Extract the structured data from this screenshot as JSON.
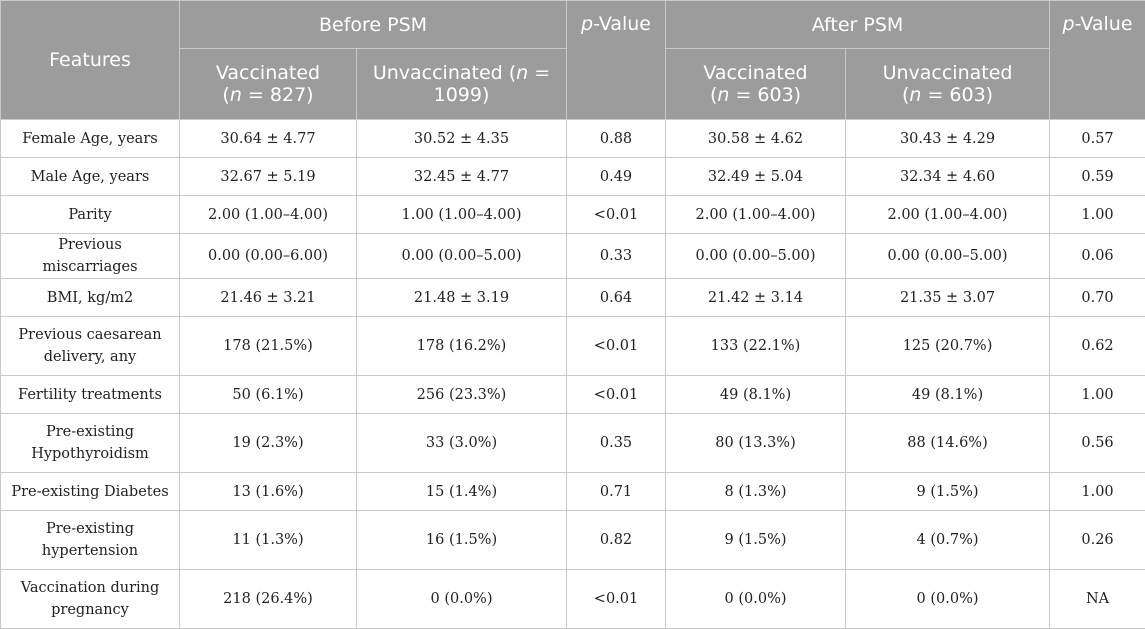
{
  "header": {
    "features": "Features",
    "before_group": "Before PSM",
    "after_group": "After PSM",
    "pvalue_p": "p",
    "pvalue_rest": "-Value",
    "before_vacc": {
      "label": "Vaccinated",
      "open": "(",
      "n": "n",
      "rest": " = 827)"
    },
    "before_unvacc": {
      "label": "Unvaccinated",
      "open": " (",
      "n": "n",
      "rest": " = 1099)"
    },
    "after_vacc": {
      "label": "Vaccinated",
      "open": "(",
      "n": "n",
      "rest": " = 603)"
    },
    "after_unvacc": {
      "label": "Unvaccinated",
      "open": "(",
      "n": "n",
      "rest": " = 603)"
    }
  },
  "rows": [
    {
      "feature": "Female Age, years",
      "b_vacc": "30.64 ± 4.77",
      "b_unvacc": "30.52 ± 4.35",
      "b_p": "0.88",
      "a_vacc": "30.58 ± 4.62",
      "a_unvacc": "30.43 ± 4.29",
      "a_p": "0.57"
    },
    {
      "feature": "Male Age, years",
      "b_vacc": "32.67 ± 5.19",
      "b_unvacc": "32.45 ± 4.77",
      "b_p": "0.49",
      "a_vacc": "32.49 ± 5.04",
      "a_unvacc": "32.34 ± 4.60",
      "a_p": "0.59"
    },
    {
      "feature": "Parity",
      "b_vacc": "2.00 (1.00–4.00)",
      "b_unvacc": "1.00 (1.00–4.00)",
      "b_p": "<0.01",
      "a_vacc": "2.00 (1.00–4.00)",
      "a_unvacc": "2.00 (1.00–4.00)",
      "a_p": "1.00"
    },
    {
      "feature": "Previous miscarriages",
      "b_vacc": "0.00 (0.00–6.00)",
      "b_unvacc": "0.00 (0.00–5.00)",
      "b_p": "0.33",
      "a_vacc": "0.00 (0.00–5.00)",
      "a_unvacc": "0.00 (0.00–5.00)",
      "a_p": "0.06"
    },
    {
      "feature": "BMI, kg/m2",
      "b_vacc": "21.46 ± 3.21",
      "b_unvacc": "21.48 ± 3.19",
      "b_p": "0.64",
      "a_vacc": "21.42 ± 3.14",
      "a_unvacc": "21.35 ± 3.07",
      "a_p": "0.70"
    },
    {
      "feature": "Previous caesarean delivery, any",
      "b_vacc": "178 (21.5%)",
      "b_unvacc": "178 (16.2%)",
      "b_p": "<0.01",
      "a_vacc": "133 (22.1%)",
      "a_unvacc": "125 (20.7%)",
      "a_p": "0.62"
    },
    {
      "feature": "Fertility treatments",
      "b_vacc": "50 (6.1%)",
      "b_unvacc": "256 (23.3%)",
      "b_p": "<0.01",
      "a_vacc": "49 (8.1%)",
      "a_unvacc": "49 (8.1%)",
      "a_p": "1.00"
    },
    {
      "feature": "Pre-existing Hypothyroidism",
      "b_vacc": "19 (2.3%)",
      "b_unvacc": "33 (3.0%)",
      "b_p": "0.35",
      "a_vacc": "80 (13.3%)",
      "a_unvacc": "88 (14.6%)",
      "a_p": "0.56"
    },
    {
      "feature": "Pre-existing Diabetes",
      "b_vacc": "13 (1.6%)",
      "b_unvacc": "15 (1.4%)",
      "b_p": "0.71",
      "a_vacc": "8 (1.3%)",
      "a_unvacc": "9 (1.5%)",
      "a_p": "1.00"
    },
    {
      "feature": "Pre-existing hypertension",
      "b_vacc": "11 (1.3%)",
      "b_unvacc": "16 (1.5%)",
      "b_p": "0.82",
      "a_vacc": "9 (1.5%)",
      "a_unvacc": "4 (0.7%)",
      "a_p": "0.26"
    },
    {
      "feature": "Vaccination during pregnancy",
      "b_vacc": "218 (26.4%)",
      "b_unvacc": "0 (0.0%)",
      "b_p": "<0.01",
      "a_vacc": "0 (0.0%)",
      "a_unvacc": "0 (0.0%)",
      "a_p": "NA"
    }
  ]
}
